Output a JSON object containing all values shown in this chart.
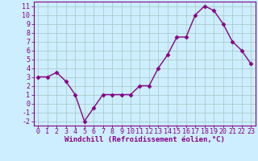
{
  "x": [
    0,
    1,
    2,
    3,
    4,
    5,
    6,
    7,
    8,
    9,
    10,
    11,
    12,
    13,
    14,
    15,
    16,
    17,
    18,
    19,
    20,
    21,
    22,
    23
  ],
  "y": [
    3,
    3,
    3.5,
    2.5,
    1,
    -2,
    -0.5,
    1,
    1,
    1,
    1,
    2,
    2,
    4,
    5.5,
    7.5,
    7.5,
    10,
    11,
    10.5,
    9,
    7,
    6,
    4.5
  ],
  "line_color": "#880088",
  "marker": "D",
  "marker_size": 2.5,
  "bg_color": "#cceeff",
  "grid_color": "#aacccc",
  "xlabel": "Windchill (Refroidissement éolien,°C)",
  "xlabel_color": "#880088",
  "xlabel_fontsize": 6.5,
  "ylim": [
    -2.5,
    11.5
  ],
  "xlim": [
    -0.5,
    23.5
  ],
  "tick_color": "#880088",
  "tick_fontsize": 6,
  "axis_color": "#880088",
  "linewidth": 1.0
}
